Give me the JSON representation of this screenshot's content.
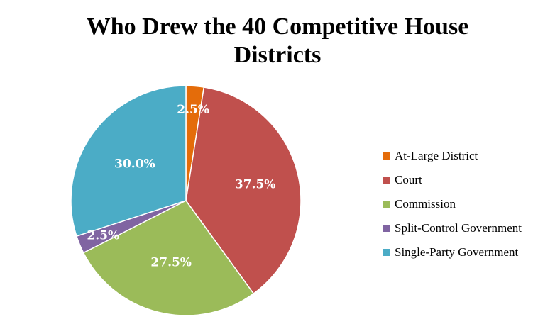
{
  "chart_data": {
    "type": "pie",
    "title_lines": [
      "Who Drew the 40 Competitive House",
      "Districts"
    ],
    "slices": [
      {
        "name": "At-Large District",
        "value": 2.5,
        "label": "2.5%",
        "color": "#E46C0A"
      },
      {
        "name": "Court",
        "value": 37.5,
        "label": "37.5%",
        "color": "#C0504D"
      },
      {
        "name": "Commission",
        "value": 27.5,
        "label": "27.5%",
        "color": "#9BBB59"
      },
      {
        "name": "Split-Control Government",
        "value": 2.5,
        "label": "2.5%",
        "color": "#8064A2"
      },
      {
        "name": "Single-Party Government",
        "value": 30.0,
        "label": "30.0%",
        "color": "#4BACC6"
      }
    ],
    "legend_position": "right"
  }
}
